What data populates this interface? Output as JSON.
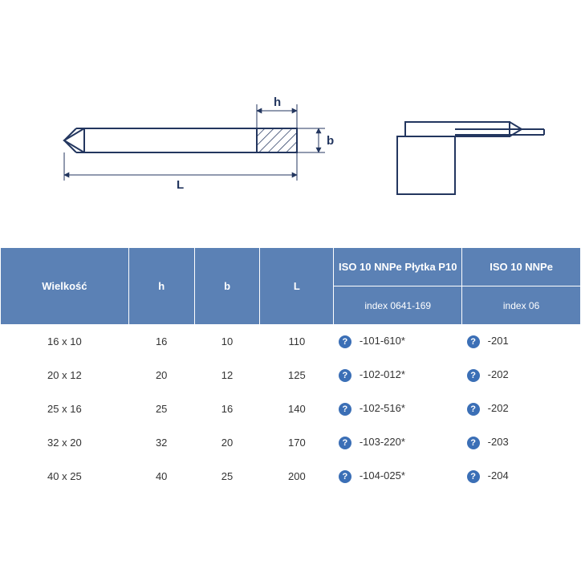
{
  "diagram": {
    "stroke": "#23365f",
    "hatch": "#23365f",
    "labels": {
      "h": "h",
      "b": "b",
      "L": "L"
    }
  },
  "table": {
    "header_bg": "#5b81b5",
    "header_fg": "#ffffff",
    "row_fg": "#333333",
    "columns": {
      "size": "Wielkość",
      "h": "h",
      "b": "b",
      "L": "L",
      "p10_top": "ISO 10 NNPe Płytka P10",
      "p10_bot": "index 0641-169",
      "p20_top": "ISO 10 NNPe",
      "p20_bot": "index 06"
    },
    "rows": [
      {
        "size": "16 x 10",
        "h": "16",
        "b": "10",
        "L": "110",
        "idx1": "-101-610*",
        "idx2": "-201"
      },
      {
        "size": "20 x 12",
        "h": "20",
        "b": "12",
        "L": "125",
        "idx1": "-102-012*",
        "idx2": "-202"
      },
      {
        "size": "25 x 16",
        "h": "25",
        "b": "16",
        "L": "140",
        "idx1": "-102-516*",
        "idx2": "-202"
      },
      {
        "size": "32 x 20",
        "h": "32",
        "b": "20",
        "L": "170",
        "idx1": "-103-220*",
        "idx2": "-203"
      },
      {
        "size": "40 x 25",
        "h": "40",
        "b": "25",
        "L": "200",
        "idx1": "-104-025*",
        "idx2": "-204"
      }
    ]
  }
}
